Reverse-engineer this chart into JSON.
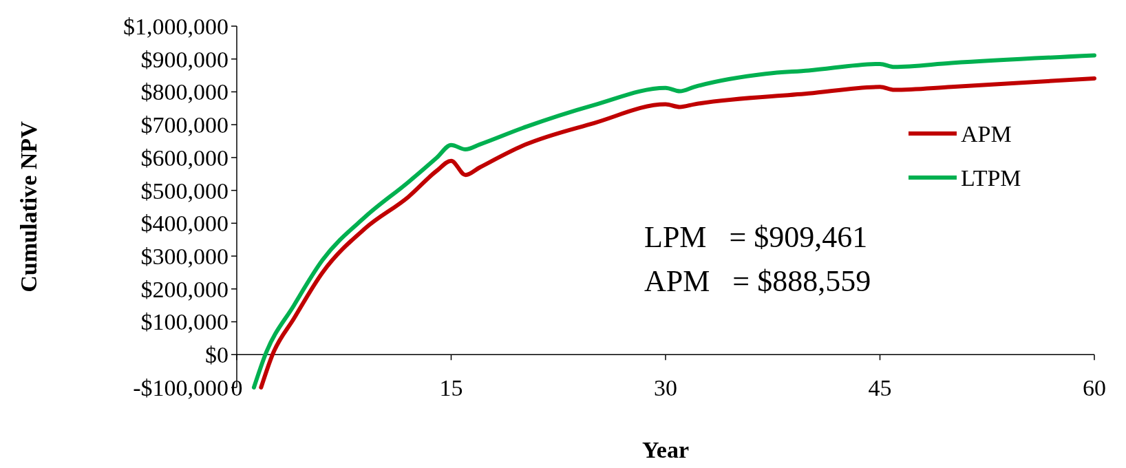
{
  "chart_data": {
    "type": "line",
    "xlabel": "Year",
    "ylabel": "Cumulative NPV",
    "xlim": [
      0,
      60
    ],
    "xticks": [
      0,
      15,
      30,
      45,
      60
    ],
    "ylim": [
      -100000,
      1000000
    ],
    "yticks": [
      {
        "value": -100000,
        "label": "-$100,000"
      },
      {
        "value": 0,
        "label": "$0"
      },
      {
        "value": 100000,
        "label": "$100,000"
      },
      {
        "value": 200000,
        "label": "$200,000"
      },
      {
        "value": 300000,
        "label": "$300,000"
      },
      {
        "value": 400000,
        "label": "$400,000"
      },
      {
        "value": 500000,
        "label": "$500,000"
      },
      {
        "value": 600000,
        "label": "$600,000"
      },
      {
        "value": 700000,
        "label": "$700,000"
      },
      {
        "value": 800000,
        "label": "$800,000"
      },
      {
        "value": 900000,
        "label": "$900,000"
      },
      {
        "value": 1000000,
        "label": "$1,000,000"
      }
    ],
    "grid": false,
    "legend": "right",
    "marker": "none",
    "line_style": "solid",
    "annotations": [
      "LPM   = $909,461",
      "APM   = $888,559"
    ],
    "series": [
      {
        "name": "APM",
        "color": "#c00000",
        "x": [
          1.7,
          2.5,
          4,
          6,
          9,
          12,
          14,
          15,
          16,
          17,
          20,
          25,
          30,
          31,
          32,
          40,
          45,
          46,
          50,
          60
        ],
        "values": [
          -100000,
          0,
          110000,
          250000,
          385000,
          480000,
          560000,
          590000,
          547000,
          570000,
          636000,
          705000,
          762000,
          754000,
          762000,
          795000,
          815000,
          806000,
          815000,
          841000
        ]
      },
      {
        "name": "LTPM",
        "color": "#00b050",
        "x": [
          1.2,
          2,
          4,
          6,
          9,
          12,
          14,
          15,
          16,
          17,
          20,
          25,
          30,
          31,
          32,
          37,
          40,
          45,
          46,
          50,
          60
        ],
        "values": [
          -100000,
          0,
          150000,
          288000,
          420000,
          525000,
          600000,
          638000,
          625000,
          640000,
          690000,
          760000,
          812000,
          802000,
          815000,
          855000,
          865000,
          885000,
          876000,
          888000,
          911000
        ]
      }
    ]
  }
}
